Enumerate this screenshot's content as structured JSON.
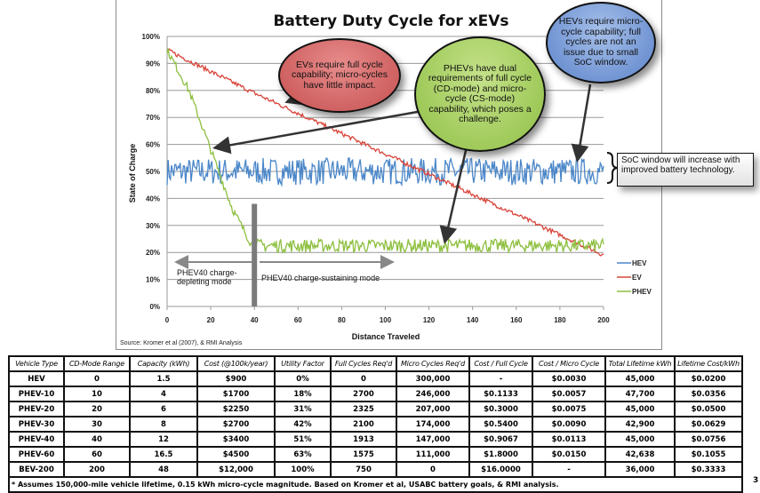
{
  "chart_data": {
    "type": "line",
    "title": "Battery Duty Cycle for xEVs",
    "xlabel": "Distance Traveled",
    "ylabel": "State of Charge",
    "xlim": [
      0,
      200
    ],
    "ylim": [
      0,
      100
    ],
    "x_ticks": [
      "0",
      "20",
      "40",
      "60",
      "80",
      "100",
      "120",
      "140",
      "160",
      "180",
      "200"
    ],
    "y_ticks": [
      "0%",
      "10%",
      "20%",
      "30%",
      "40%",
      "50%",
      "60%",
      "70%",
      "80%",
      "90%",
      "100%"
    ],
    "grid": true,
    "legend_position": "right",
    "series": [
      {
        "name": "HEV",
        "color": "#4a86c8",
        "description": "oscillates between ~45% and ~55% across 0-200",
        "x": [
          0,
          200
        ],
        "y_center": 50,
        "amplitude": 5
      },
      {
        "name": "EV",
        "color": "#d9443a",
        "description": "declines roughly linearly from ~95% to ~19% with noise",
        "x": [
          0,
          40,
          80,
          120,
          160,
          200
        ],
        "y": [
          95,
          79,
          64,
          49,
          34,
          19
        ]
      },
      {
        "name": "PHEV",
        "color": "#8dbf3f",
        "description": "charge-depleting from ~95% to ~21% by 40, then sustaining 20-25%",
        "x": [
          0,
          10,
          20,
          30,
          40,
          200
        ],
        "y": [
          95,
          80,
          58,
          36,
          21,
          22
        ]
      }
    ],
    "annotations": [
      {
        "id": "ev",
        "text": "EVs require full cycle capability; micro-cycles have little impact."
      },
      {
        "id": "phev",
        "text": "PHEVs have dual requirements of full cycle (CD-mode) and micro-cycle (CS-mode) capability, which poses a challenge."
      },
      {
        "id": "hev",
        "text": "HEVs require micro-cycle capability; full cycles are not an issue due to small SoC window."
      },
      {
        "id": "soc",
        "text": "SoC window will increase with improved battery technology."
      },
      {
        "id": "cd",
        "text": "PHEV40 charge-depleting mode"
      },
      {
        "id": "cs",
        "text": "PHEV40 charge-sustaining mode"
      }
    ],
    "divider_x": 40,
    "source": "Source: Kromer et al (2007), & RMI Analysis"
  },
  "table": {
    "headers": [
      "Vehicle Type",
      "CD-Mode Range",
      "Capacity (kWh)",
      "Cost (@100k/year)",
      "Utility Factor",
      "Full Cycles Req'd",
      "Micro Cycles Req'd",
      "Cost / Full Cycle",
      "Cost / Micro Cycle",
      "Total Lifetime kWh",
      "Lifetime Cost/kWh"
    ],
    "rows": [
      [
        "HEV",
        "0",
        "1.5",
        "$900",
        "0%",
        "0",
        "300,000",
        "-",
        "$0.0030",
        "45,000",
        "$0.0200"
      ],
      [
        "PHEV-10",
        "10",
        "4",
        "$1700",
        "18%",
        "2700",
        "246,000",
        "$0.1133",
        "$0.0057",
        "47,700",
        "$0.0356"
      ],
      [
        "PHEV-20",
        "20",
        "6",
        "$2250",
        "31%",
        "2325",
        "207,000",
        "$0.3000",
        "$0.0075",
        "45,000",
        "$0.0500"
      ],
      [
        "PHEV-30",
        "30",
        "8",
        "$2700",
        "42%",
        "2100",
        "174,000",
        "$0.5400",
        "$0.0090",
        "42,900",
        "$0.0629"
      ],
      [
        "PHEV-40",
        "40",
        "12",
        "$3400",
        "51%",
        "1913",
        "147,000",
        "$0.9067",
        "$0.0113",
        "45,000",
        "$0.0756"
      ],
      [
        "PHEV-60",
        "60",
        "16.5",
        "$4500",
        "63%",
        "1575",
        "111,000",
        "$1.8000",
        "$0.0150",
        "42,638",
        "$0.1055"
      ],
      [
        "BEV-200",
        "200",
        "48",
        "$12,000",
        "100%",
        "750",
        "0",
        "$16.0000",
        "-",
        "36,000",
        "$0.3333"
      ]
    ],
    "footnote": "* Assumes 150,000-mile vehicle lifetime, 0.15 kWh micro-cycle magnitude.  Based on Kromer et al, USABC battery goals, & RMI analysis."
  },
  "page_number": "3"
}
